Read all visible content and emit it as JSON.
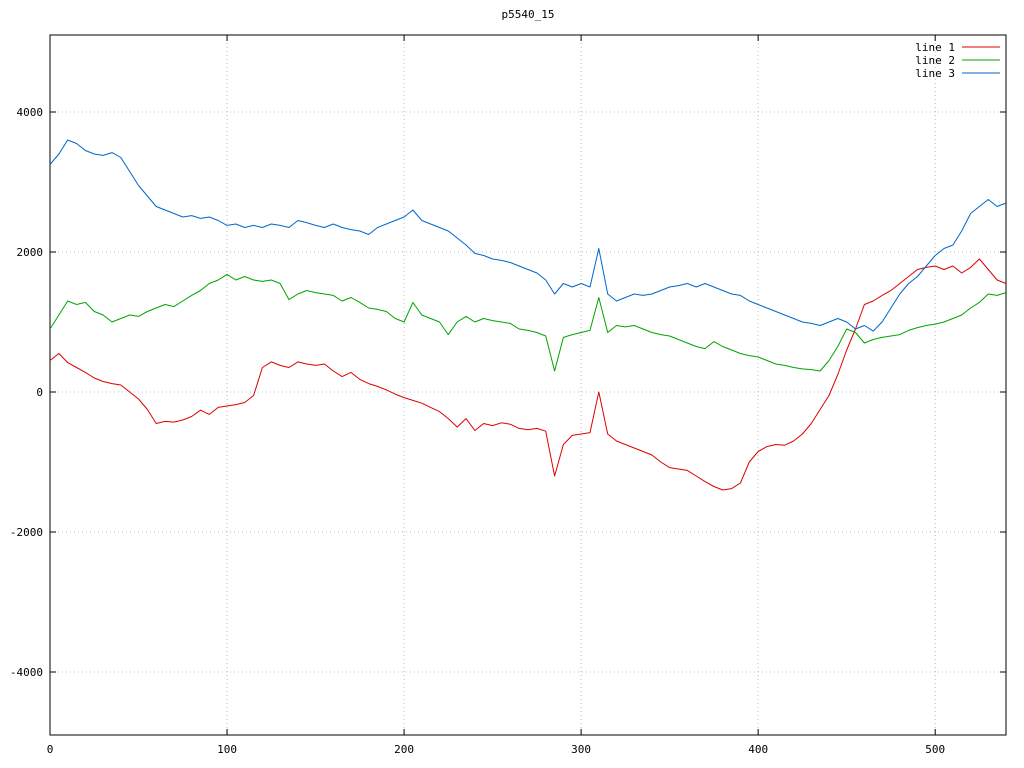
{
  "page": {
    "title": "p5540_15"
  },
  "chart_data": {
    "type": "line",
    "title": "p5540_15",
    "xlabel": "",
    "ylabel": "",
    "xlim": [
      0,
      540
    ],
    "ylim": [
      -4900,
      5100
    ],
    "xticks": [
      0,
      100,
      200,
      300,
      400,
      500
    ],
    "yticks": [
      -4000,
      -2000,
      0,
      2000,
      4000
    ],
    "grid": true,
    "grid_style": "dotted",
    "grid_color": "#bbbbbb",
    "border_color": "#000000",
    "background_color": "#ffffff",
    "legend_position": "top-right",
    "x": [
      0,
      5,
      10,
      15,
      20,
      25,
      30,
      35,
      40,
      45,
      50,
      55,
      60,
      65,
      70,
      75,
      80,
      85,
      90,
      95,
      100,
      105,
      110,
      115,
      120,
      125,
      130,
      135,
      140,
      145,
      150,
      155,
      160,
      165,
      170,
      175,
      180,
      185,
      190,
      195,
      200,
      205,
      210,
      215,
      220,
      225,
      230,
      235,
      240,
      245,
      250,
      255,
      260,
      265,
      270,
      275,
      280,
      285,
      290,
      295,
      300,
      305,
      310,
      315,
      320,
      325,
      330,
      335,
      340,
      345,
      350,
      355,
      360,
      365,
      370,
      375,
      380,
      385,
      390,
      395,
      400,
      405,
      410,
      415,
      420,
      425,
      430,
      435,
      440,
      445,
      450,
      455,
      460,
      465,
      470,
      475,
      480,
      485,
      490,
      495,
      500,
      505,
      510,
      515,
      520,
      525,
      530,
      535,
      540
    ],
    "series": [
      {
        "name": "line 1",
        "color": "#dd0000",
        "values": [
          450,
          550,
          420,
          350,
          280,
          200,
          150,
          120,
          100,
          0,
          -100,
          -250,
          -450,
          -420,
          -430,
          -400,
          -350,
          -260,
          -320,
          -220,
          -200,
          -180,
          -150,
          -50,
          350,
          430,
          380,
          350,
          430,
          400,
          380,
          400,
          300,
          220,
          280,
          180,
          120,
          80,
          30,
          -30,
          -80,
          -120,
          -160,
          -220,
          -280,
          -380,
          -500,
          -380,
          -550,
          -450,
          -480,
          -440,
          -460,
          -520,
          -540,
          -520,
          -560,
          -1200,
          -750,
          -620,
          -600,
          -580,
          0,
          -600,
          -700,
          -750,
          -800,
          -850,
          -900,
          -1000,
          -1080,
          -1100,
          -1120,
          -1200,
          -1280,
          -1350,
          -1400,
          -1380,
          -1300,
          -1000,
          -850,
          -780,
          -750,
          -760,
          -700,
          -600,
          -450,
          -250,
          -50,
          250,
          600,
          900,
          1250,
          1300,
          1380,
          1450,
          1550,
          1650,
          1750,
          1780,
          1800,
          1750,
          1800,
          1700,
          1780,
          1900,
          1750,
          1600,
          1550
        ]
      },
      {
        "name": "line 2",
        "color": "#00a400",
        "values": [
          900,
          1100,
          1300,
          1250,
          1280,
          1150,
          1100,
          1000,
          1050,
          1100,
          1080,
          1150,
          1200,
          1250,
          1220,
          1300,
          1380,
          1450,
          1550,
          1600,
          1680,
          1600,
          1650,
          1600,
          1580,
          1600,
          1550,
          1320,
          1400,
          1450,
          1420,
          1400,
          1380,
          1300,
          1350,
          1280,
          1200,
          1180,
          1150,
          1050,
          1000,
          1280,
          1100,
          1050,
          1000,
          820,
          1000,
          1080,
          1000,
          1050,
          1020,
          1000,
          980,
          900,
          880,
          850,
          800,
          300,
          780,
          820,
          850,
          880,
          1350,
          850,
          950,
          930,
          950,
          900,
          850,
          820,
          800,
          750,
          700,
          650,
          620,
          720,
          650,
          600,
          550,
          520,
          500,
          450,
          400,
          380,
          350,
          330,
          320,
          300,
          450,
          650,
          900,
          850,
          700,
          750,
          780,
          800,
          820,
          880,
          920,
          950,
          970,
          1000,
          1050,
          1100,
          1200,
          1280,
          1400,
          1380,
          1420
        ]
      },
      {
        "name": "line 3",
        "color": "#0066cc",
        "values": [
          3250,
          3400,
          3600,
          3550,
          3450,
          3400,
          3380,
          3420,
          3350,
          3150,
          2950,
          2800,
          2650,
          2600,
          2550,
          2500,
          2520,
          2480,
          2500,
          2450,
          2380,
          2400,
          2350,
          2380,
          2350,
          2400,
          2380,
          2350,
          2450,
          2420,
          2380,
          2350,
          2400,
          2350,
          2320,
          2300,
          2250,
          2350,
          2400,
          2450,
          2500,
          2600,
          2450,
          2400,
          2350,
          2300,
          2200,
          2100,
          1980,
          1950,
          1900,
          1880,
          1850,
          1800,
          1750,
          1700,
          1600,
          1400,
          1550,
          1500,
          1550,
          1500,
          2050,
          1400,
          1300,
          1350,
          1400,
          1380,
          1400,
          1450,
          1500,
          1520,
          1550,
          1500,
          1550,
          1500,
          1450,
          1400,
          1380,
          1300,
          1250,
          1200,
          1150,
          1100,
          1050,
          1000,
          980,
          950,
          1000,
          1050,
          1000,
          900,
          950,
          870,
          1000,
          1200,
          1400,
          1550,
          1650,
          1800,
          1950,
          2050,
          2100,
          2300,
          2550,
          2650,
          2750,
          2650,
          2700
        ]
      }
    ]
  }
}
